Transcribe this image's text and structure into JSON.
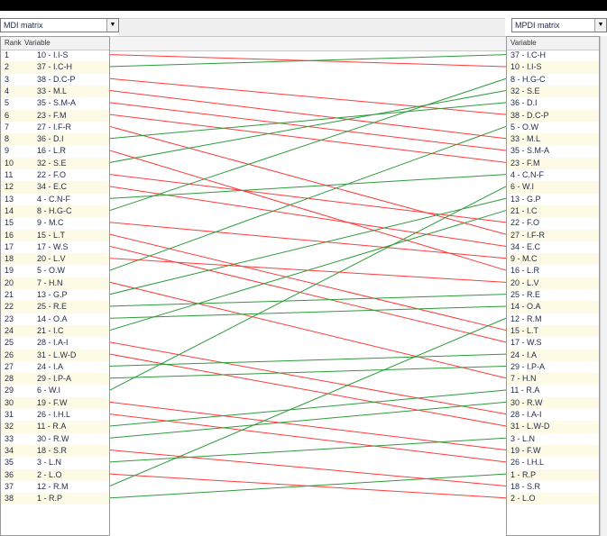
{
  "left_select": {
    "value": "MDI matrix"
  },
  "right_select": {
    "value": "MPDI matrix"
  },
  "left_header": {
    "rank": "Rank",
    "variable": "Variable"
  },
  "right_header": {
    "variable": "Variable"
  },
  "colors": {
    "rank_down": "#ff3b3b",
    "rank_up": "#2e9a3c",
    "row_alt": "#fdfbe6"
  },
  "left_list": [
    "10 - I.I-S",
    "37 - I.C-H",
    "38 - D.C-P",
    "33 - M.L",
    "35 - S.M-A",
    "23 - F.M",
    "27 - I.F-R",
    "36 - D.I",
    "16 - L.R",
    "32 - S.E",
    "22 - F.O",
    "34 - E.C",
    "4 - C.N-F",
    "8 - H.G-C",
    "9 - M.C",
    "15 - L.T",
    "17 - W.S",
    "20 - L.V",
    "5 - O.W",
    "7 - H.N",
    "13 - G.P",
    "25 - R.E",
    "14 - O.A",
    "21 - I.C",
    "28 - I.A-I",
    "31 - L.W-D",
    "24 - I.A",
    "29 - I.P-A",
    "6 - W.I",
    "19 - F.W",
    "26 - I.H.L",
    "11 - R.A",
    "30 - R.W",
    "18 - S.R",
    "3 - L.N",
    "2 - L.O",
    "12 - R.M",
    "1 - R.P"
  ],
  "right_list": [
    "37 - I.C-H",
    "10 - I.I-S",
    "8 - H.G-C",
    "32 - S.E",
    "36 - D.I",
    "38 - D.C-P",
    "5 - O.W",
    "33 - M.L",
    "35 - S.M-A",
    "23 - F.M",
    "4 - C.N-F",
    "6 - W.I",
    "13 - G.P",
    "21 - I.C",
    "22 - F.O",
    "27 - I.F-R",
    "34 - E.C",
    "9 - M.C",
    "16 - L.R",
    "20 - L.V",
    "25 - R.E",
    "14 - O.A",
    "12 - R.M",
    "15 - L.T",
    "17 - W.S",
    "24 - I.A",
    "29 - I.P-A",
    "7 - H.N",
    "11 - R.A",
    "30 - R.W",
    "28 - I.A-I",
    "31 - L.W-D",
    "3 - L.N",
    "19 - F.W",
    "26 - I.H.L",
    "1 - R.P",
    "18 - S.R",
    "2 - L.O"
  ]
}
